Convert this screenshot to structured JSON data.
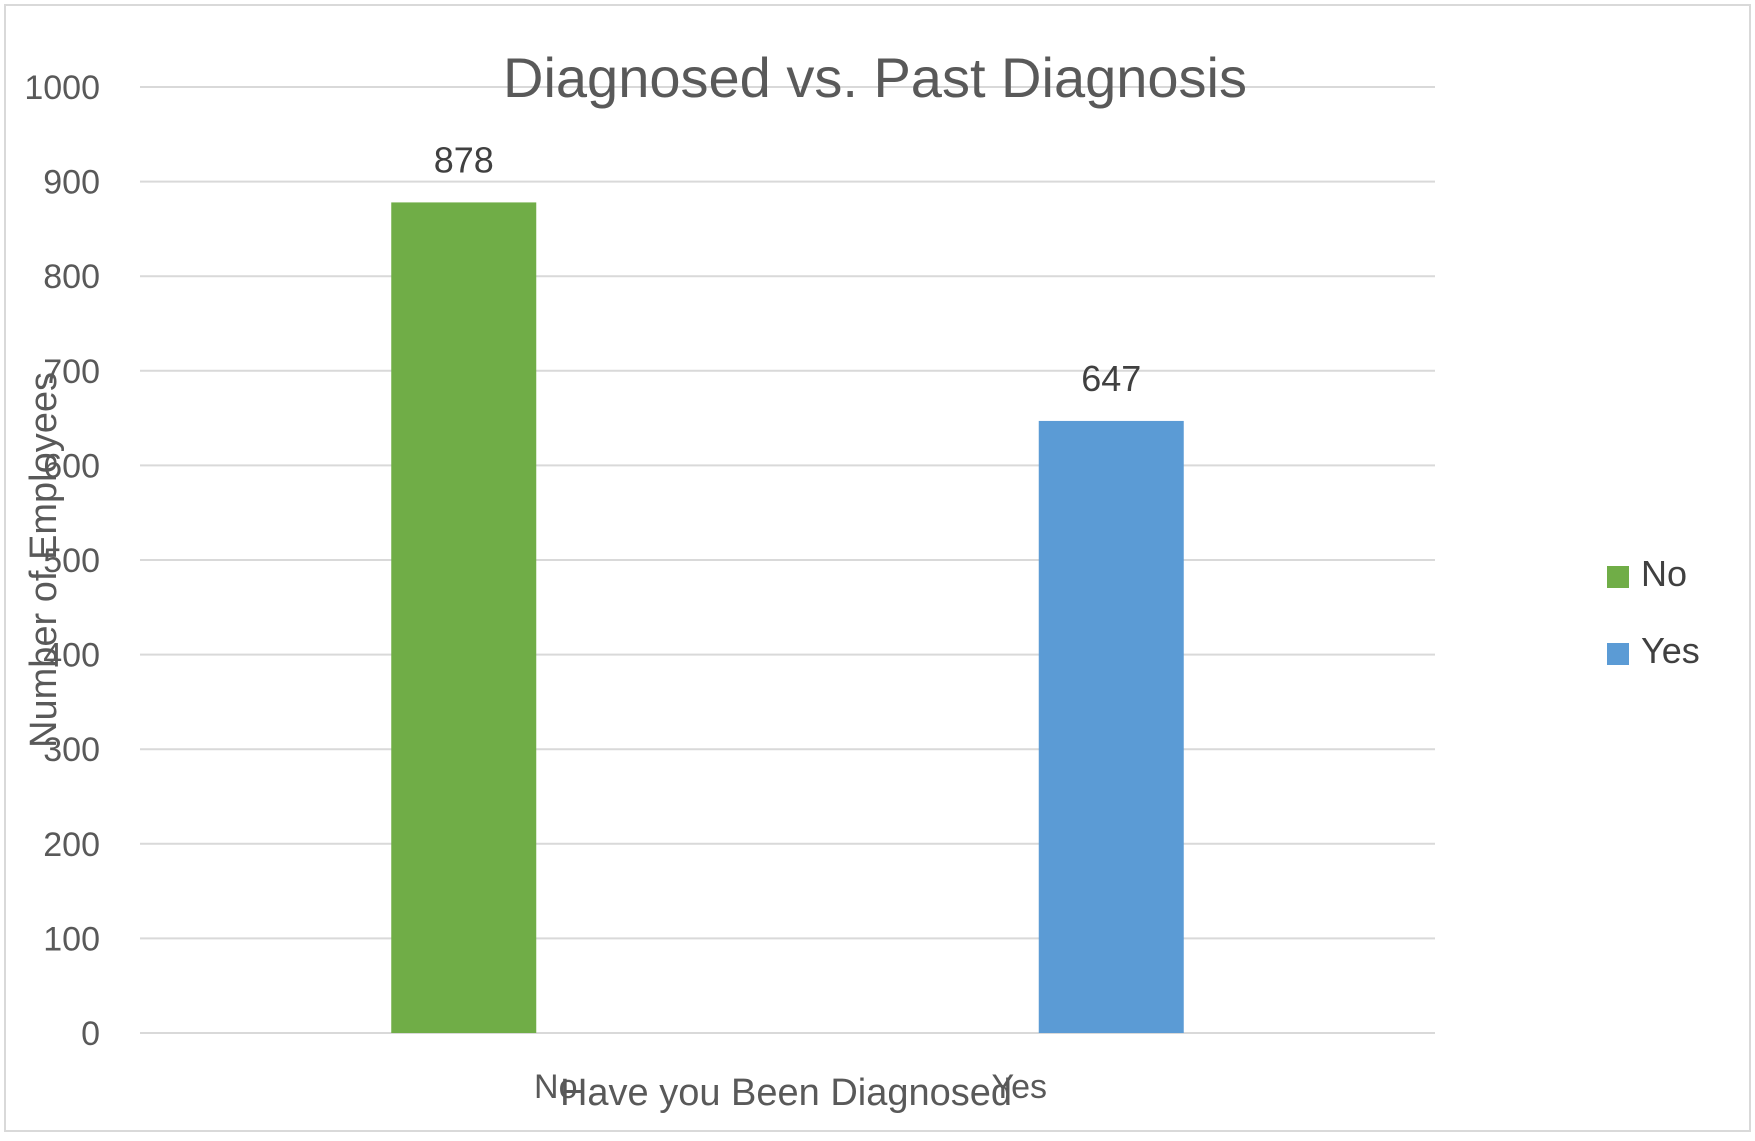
{
  "chart_data": {
    "type": "bar",
    "title": "Diagnosed vs. Past Diagnosis",
    "xlabel": "Have you Been Diagnosed",
    "ylabel": "Number of Employees",
    "categories": [
      "No",
      "Yes"
    ],
    "values": [
      878,
      647
    ],
    "data_labels": [
      "878",
      "647"
    ],
    "colors": [
      "#70AD47",
      "#5B9BD5"
    ],
    "ylim": [
      0,
      1000
    ],
    "yticks": [
      0,
      100,
      200,
      300,
      400,
      500,
      600,
      700,
      800,
      900,
      1000
    ],
    "ytick_labels": [
      "0",
      "100",
      "200",
      "300",
      "400",
      "500",
      "600",
      "700",
      "800",
      "900",
      "1000"
    ],
    "grid": true,
    "legend": {
      "placement": "right",
      "entries": [
        {
          "label": "No",
          "color": "#70AD47"
        },
        {
          "label": "Yes",
          "color": "#5B9BD5"
        }
      ]
    }
  }
}
